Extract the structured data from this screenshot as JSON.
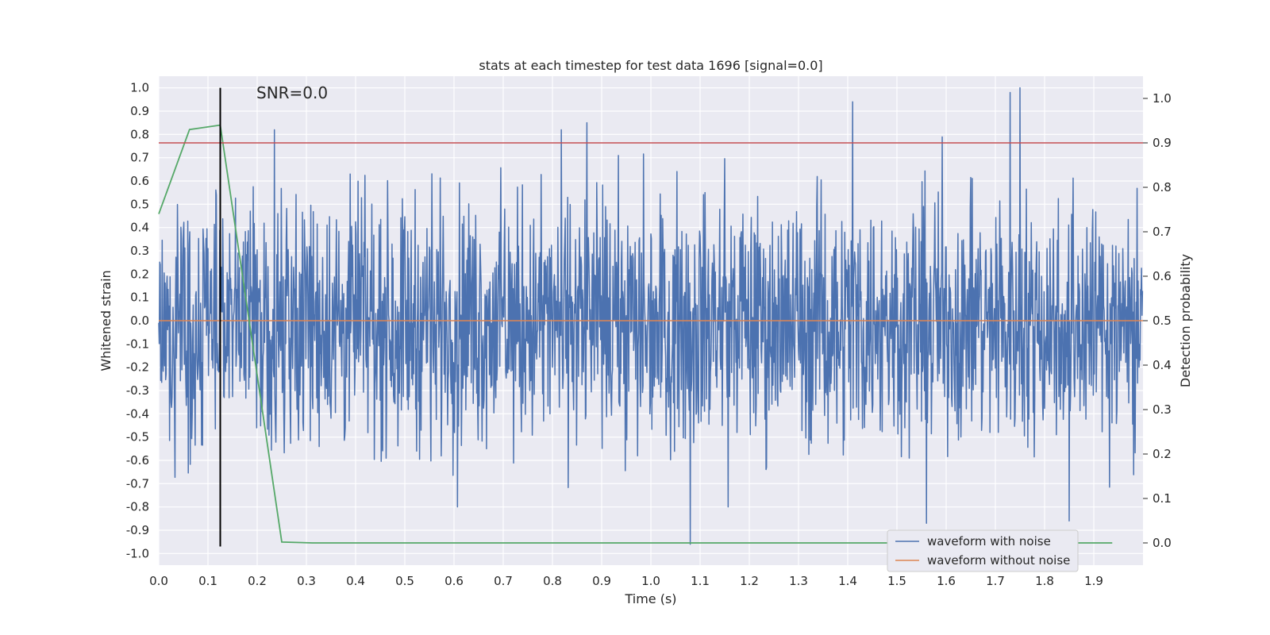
{
  "chart_data": {
    "type": "line",
    "title": "stats at each timestep for test data 1696 [signal=0.0]",
    "xlabel": "Time (s)",
    "ylabel": "Whitened strain",
    "y2label": "Detection probability",
    "xlim": [
      0.0,
      2.0
    ],
    "ylim": [
      -1.05,
      1.05
    ],
    "y2lim": [
      -0.05,
      1.05
    ],
    "x_ticks": [
      "0.0",
      "0.1",
      "0.2",
      "0.3",
      "0.4",
      "0.5",
      "0.6",
      "0.7",
      "0.8",
      "0.9",
      "1.0",
      "1.1",
      "1.2",
      "1.3",
      "1.4",
      "1.5",
      "1.6",
      "1.7",
      "1.8",
      "1.9"
    ],
    "y_ticks": [
      "1.0",
      "0.9",
      "0.8",
      "0.7",
      "0.6",
      "0.5",
      "0.4",
      "0.3",
      "0.2",
      "0.1",
      "0.0",
      "-0.1",
      "-0.2",
      "-0.3",
      "-0.4",
      "-0.5",
      "-0.6",
      "-0.7",
      "-0.8",
      "-0.9",
      "-1.0"
    ],
    "y2_ticks": [
      "1.0",
      "0.9",
      "0.8",
      "0.7",
      "0.6",
      "0.5",
      "0.4",
      "0.3",
      "0.2",
      "0.1",
      "0.0"
    ],
    "annotation": "SNR=0.0",
    "grid": true,
    "legend_position": "lower-right",
    "threshold": {
      "axis": "right",
      "value": 0.9,
      "color": "#c44e52"
    },
    "marker_line": {
      "x": 0.125,
      "ymin": -0.97,
      "ymax": 1.0,
      "color": "#000000"
    },
    "series": [
      {
        "name": "waveform with noise",
        "color": "#4c72b0",
        "axis": "left",
        "sampling": "dense noise over 0.0–2.0 s, amplitude within about -0.96 to 1.0",
        "peaks": [
          {
            "x": 0.87,
            "y": 0.85
          },
          {
            "x": 1.41,
            "y": 0.94
          },
          {
            "x": 1.73,
            "y": 0.98
          },
          {
            "x": 1.75,
            "y": 1.0
          },
          {
            "x": 1.08,
            "y": -0.96
          },
          {
            "x": 1.56,
            "y": -0.87
          },
          {
            "x": 1.85,
            "y": -0.86
          }
        ]
      },
      {
        "name": "waveform without noise",
        "color": "#dd8452",
        "axis": "left",
        "x": [
          0.0,
          2.0
        ],
        "y": [
          0.0,
          0.0
        ]
      },
      {
        "color": "#55a868",
        "axis": "right",
        "x": [
          0.0,
          0.0625,
          0.125,
          0.25,
          0.3125,
          1.9375
        ],
        "y": [
          0.74,
          0.93,
          0.94,
          0.002,
          0.0,
          0.0
        ]
      }
    ]
  }
}
